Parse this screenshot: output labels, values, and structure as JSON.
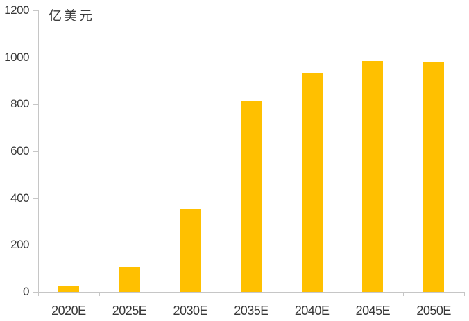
{
  "chart_data": {
    "type": "bar",
    "title": "",
    "ylabel": "亿美元",
    "xlabel": "",
    "categories": [
      "2020E",
      "2025E",
      "2030E",
      "2035E",
      "2040E",
      "2045E",
      "2050E"
    ],
    "values": [
      25,
      105,
      355,
      815,
      930,
      985,
      980
    ],
    "ylim": [
      0,
      1200
    ],
    "y_ticks": [
      0,
      200,
      400,
      600,
      800,
      1000,
      1200
    ],
    "grid": false,
    "legend_position": "none",
    "bar_color": "#FFC000",
    "axis_color": "#C6C6C6",
    "label_color": "#373737"
  }
}
